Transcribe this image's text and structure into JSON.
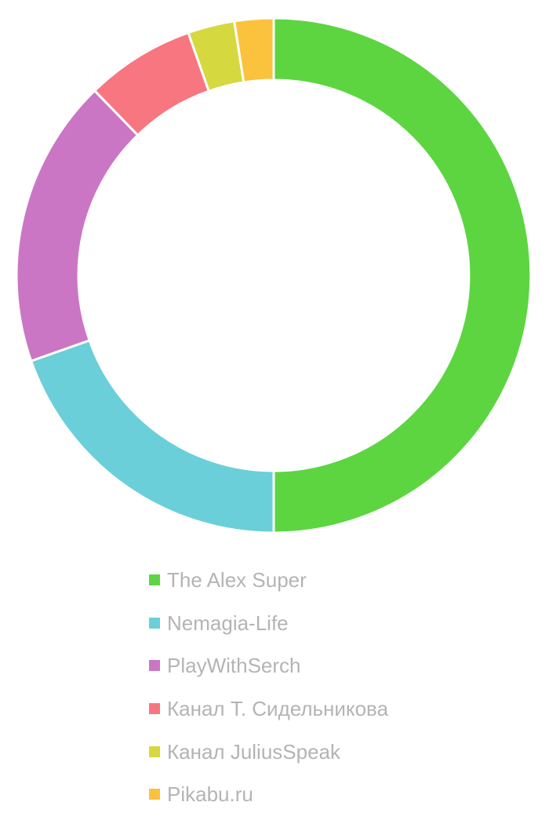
{
  "chart_data": {
    "type": "pie",
    "variant": "doughnut",
    "title": "",
    "legend_position": "bottom",
    "slices": [
      {
        "label": "The Alex Super",
        "value": 51.0,
        "color": "#5cd541"
      },
      {
        "label": "Nemagia-Life",
        "value": 20.0,
        "color": "#6bcfda"
      },
      {
        "label": "PlayWithSerch",
        "value": 18.5,
        "color": "#cb76c4"
      },
      {
        "label": "Канал Т. Сидельникова",
        "value": 7.0,
        "color": "#f87680"
      },
      {
        "label": "Канал JuliusSpeak",
        "value": 3.0,
        "color": "#d6d83f"
      },
      {
        "label": "Pikabu.ru",
        "value": 2.5,
        "color": "#fbc23e"
      }
    ]
  }
}
